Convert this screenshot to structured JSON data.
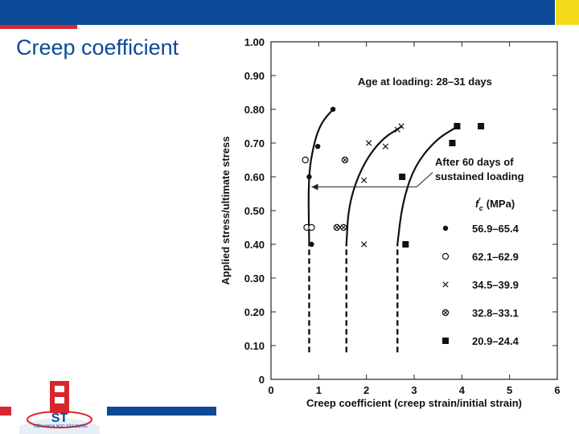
{
  "slide": {
    "title": "Creep coefficient",
    "logo_text": "VIỆN KHOA HỌC SÂY DỰNG",
    "colors": {
      "top_bar": "#0b4a97",
      "accent_red": "#d8262e",
      "corner": "#f4dc1c"
    }
  },
  "chart_data": {
    "type": "scatter",
    "xlabel": "Creep coefficient (creep strain/initial strain)",
    "ylabel": "Applied stress/ultimate stress",
    "xlim": [
      0,
      6
    ],
    "ylim": [
      0,
      1.0
    ],
    "x_ticks": [
      "0",
      "1",
      "2",
      "3",
      "4",
      "5",
      "6"
    ],
    "y_ticks": [
      "0",
      "0.10",
      "0.20",
      "0.30",
      "0.40",
      "0.50",
      "0.60",
      "0.70",
      "0.80",
      "0.90",
      "1.00"
    ],
    "annotations": {
      "age": "Age at loading: 28–31 days",
      "after_line1": "After 60 days of",
      "after_line2": "sustained loading"
    },
    "legend_title": "f′c (MPa)",
    "legend_title_main": "f",
    "legend_title_sup": "′",
    "legend_title_sub": "c",
    "legend_title_unit": "(MPa)",
    "series": [
      {
        "name": "56.9–65.4",
        "marker": "filled-circle",
        "points": [
          [
            0.8,
            0.6
          ],
          [
            0.85,
            0.4
          ],
          [
            0.98,
            0.69
          ],
          [
            1.3,
            0.8
          ]
        ]
      },
      {
        "name": "62.1–62.9",
        "marker": "open-circle",
        "points": [
          [
            0.72,
            0.65
          ],
          [
            0.75,
            0.45
          ],
          [
            0.85,
            0.45
          ]
        ]
      },
      {
        "name": "34.5–39.9",
        "marker": "cross",
        "points": [
          [
            1.95,
            0.4
          ],
          [
            1.95,
            0.59
          ],
          [
            2.05,
            0.7
          ],
          [
            2.4,
            0.69
          ],
          [
            2.65,
            0.74
          ],
          [
            2.73,
            0.75
          ]
        ]
      },
      {
        "name": "32.8–33.1",
        "marker": "circled-cross",
        "points": [
          [
            1.38,
            0.45
          ],
          [
            1.52,
            0.45
          ],
          [
            1.55,
            0.65
          ]
        ]
      },
      {
        "name": "20.9–24.4",
        "marker": "filled-square",
        "points": [
          [
            2.75,
            0.6
          ],
          [
            2.82,
            0.4
          ],
          [
            3.8,
            0.7
          ],
          [
            3.9,
            0.75
          ],
          [
            4.4,
            0.75
          ]
        ]
      }
    ],
    "curves": [
      [
        [
          0.8,
          0.08
        ],
        [
          0.8,
          0.4
        ],
        [
          0.78,
          0.6
        ],
        [
          0.9,
          0.7
        ],
        [
          1.05,
          0.76
        ],
        [
          1.3,
          0.8
        ]
      ],
      [
        [
          1.58,
          0.08
        ],
        [
          1.58,
          0.4
        ],
        [
          1.63,
          0.52
        ],
        [
          1.9,
          0.63
        ],
        [
          2.3,
          0.71
        ],
        [
          2.75,
          0.75
        ]
      ],
      [
        [
          2.65,
          0.08
        ],
        [
          2.65,
          0.4
        ],
        [
          2.75,
          0.52
        ],
        [
          3.0,
          0.63
        ],
        [
          3.45,
          0.71
        ],
        [
          3.92,
          0.75
        ]
      ]
    ],
    "sustained_level": 0.57,
    "sustained_arrow_x": [
      0.85,
      3.05
    ]
  }
}
